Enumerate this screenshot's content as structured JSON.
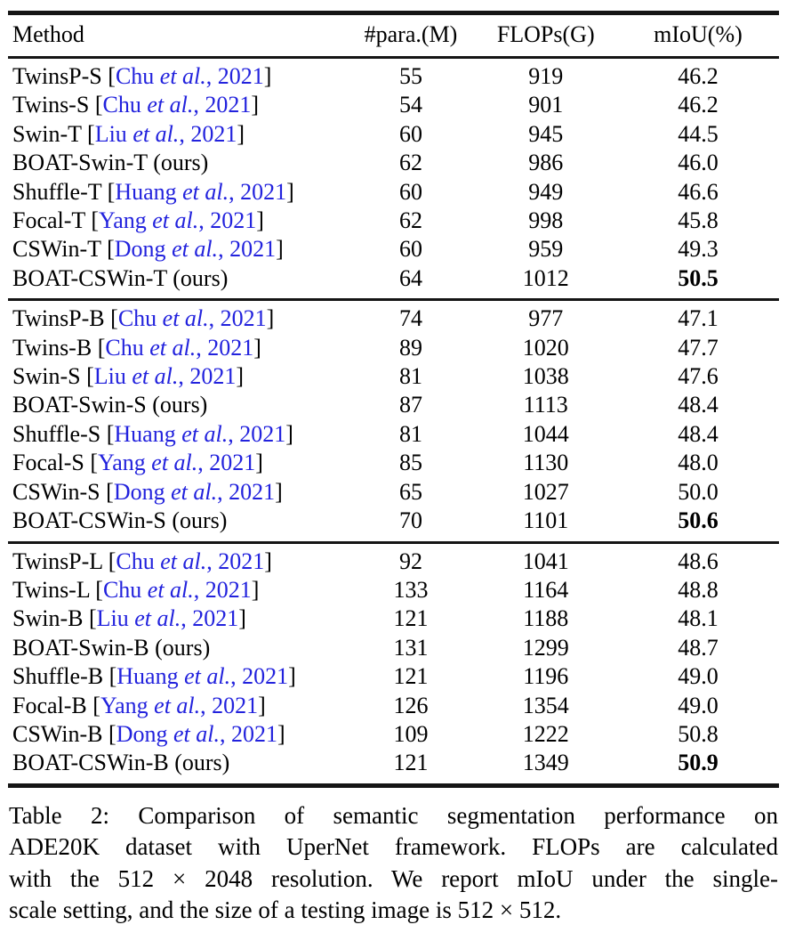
{
  "colors": {
    "citation": "#2222dd",
    "text": "#000000",
    "rule": "#151515",
    "background": "#ffffff"
  },
  "table": {
    "headers": [
      "Method",
      "#para.(M)",
      "FLOPs(G)",
      "mIoU(%)"
    ],
    "cite_bracket_open": "[",
    "cite_bracket_close": "]",
    "groups": [
      {
        "rows": [
          {
            "name": "TwinsP-S",
            "cite_author": "Chu",
            "cite_etal": "et al.",
            "cite_year": "2021",
            "para": "55",
            "flops": "919",
            "miou": "46.2",
            "bold": false
          },
          {
            "name": "Twins-S",
            "cite_author": "Chu",
            "cite_etal": "et al.",
            "cite_year": "2021",
            "para": "54",
            "flops": "901",
            "miou": "46.2",
            "bold": false
          },
          {
            "name": "Swin-T",
            "cite_author": "Liu",
            "cite_etal": "et al.",
            "cite_year": "2021",
            "para": "60",
            "flops": "945",
            "miou": "44.5",
            "bold": false
          },
          {
            "name": "BOAT-Swin-T",
            "suffix": "(ours)",
            "para": "62",
            "flops": "986",
            "miou": "46.0",
            "bold": false
          },
          {
            "name": "Shuffle-T",
            "cite_author": "Huang",
            "cite_etal": "et al.",
            "cite_year": "2021",
            "para": "60",
            "flops": "949",
            "miou": "46.6",
            "bold": false
          },
          {
            "name": "Focal-T",
            "cite_author": "Yang",
            "cite_etal": "et al.",
            "cite_year": "2021",
            "para": "62",
            "flops": "998",
            "miou": "45.8",
            "bold": false
          },
          {
            "name": "CSWin-T",
            "cite_author": "Dong",
            "cite_etal": "et al.",
            "cite_year": "2021",
            "para": "60",
            "flops": "959",
            "miou": "49.3",
            "bold": false
          },
          {
            "name": "BOAT-CSWin-T",
            "suffix": "(ours)",
            "para": "64",
            "flops": "1012",
            "miou": "50.5",
            "bold": true
          }
        ]
      },
      {
        "rows": [
          {
            "name": "TwinsP-B",
            "cite_author": "Chu",
            "cite_etal": "et al.",
            "cite_year": "2021",
            "para": "74",
            "flops": "977",
            "miou": "47.1",
            "bold": false
          },
          {
            "name": "Twins-B",
            "cite_author": "Chu",
            "cite_etal": "et al.",
            "cite_year": "2021",
            "para": "89",
            "flops": "1020",
            "miou": "47.7",
            "bold": false
          },
          {
            "name": "Swin-S",
            "cite_author": "Liu",
            "cite_etal": "et al.",
            "cite_year": "2021",
            "para": "81",
            "flops": "1038",
            "miou": "47.6",
            "bold": false
          },
          {
            "name": "BOAT-Swin-S",
            "suffix": "(ours)",
            "para": "87",
            "flops": "1113",
            "miou": "48.4",
            "bold": false
          },
          {
            "name": "Shuffle-S",
            "cite_author": "Huang",
            "cite_etal": "et al.",
            "cite_year": "2021",
            "para": "81",
            "flops": "1044",
            "miou": "48.4",
            "bold": false
          },
          {
            "name": "Focal-S",
            "cite_author": "Yang",
            "cite_etal": "et al.",
            "cite_year": "2021",
            "para": "85",
            "flops": "1130",
            "miou": "48.0",
            "bold": false
          },
          {
            "name": "CSWin-S",
            "cite_author": "Dong",
            "cite_etal": "et al.",
            "cite_year": "2021",
            "para": "65",
            "flops": "1027",
            "miou": "50.0",
            "bold": false
          },
          {
            "name": "BOAT-CSWin-S",
            "suffix": "(ours)",
            "para": "70",
            "flops": "1101",
            "miou": "50.6",
            "bold": true
          }
        ]
      },
      {
        "rows": [
          {
            "name": "TwinsP-L",
            "cite_author": "Chu",
            "cite_etal": "et al.",
            "cite_year": "2021",
            "para": "92",
            "flops": "1041",
            "miou": "48.6",
            "bold": false
          },
          {
            "name": "Twins-L",
            "cite_author": "Chu",
            "cite_etal": "et al.",
            "cite_year": "2021",
            "para": "133",
            "flops": "1164",
            "miou": "48.8",
            "bold": false
          },
          {
            "name": "Swin-B",
            "cite_author": "Liu",
            "cite_etal": "et al.",
            "cite_year": "2021",
            "para": "121",
            "flops": "1188",
            "miou": "48.1",
            "bold": false
          },
          {
            "name": "BOAT-Swin-B",
            "suffix": "(ours)",
            "para": "131",
            "flops": "1299",
            "miou": "48.7",
            "bold": false
          },
          {
            "name": "Shuffle-B",
            "cite_author": "Huang",
            "cite_etal": "et al.",
            "cite_year": "2021",
            "para": "121",
            "flops": "1196",
            "miou": "49.0",
            "bold": false
          },
          {
            "name": "Focal-B",
            "cite_author": "Yang",
            "cite_etal": "et al.",
            "cite_year": "2021",
            "para": "126",
            "flops": "1354",
            "miou": "49.0",
            "bold": false
          },
          {
            "name": "CSWin-B",
            "cite_author": "Dong",
            "cite_etal": "et al.",
            "cite_year": "2021",
            "para": "109",
            "flops": "1222",
            "miou": "50.8",
            "bold": false
          },
          {
            "name": "BOAT-CSWin-B",
            "suffix": "(ours)",
            "para": "121",
            "flops": "1349",
            "miou": "50.9",
            "bold": true
          }
        ]
      }
    ]
  },
  "caption": {
    "lines": [
      "Table 2:  Comparison of semantic segmentation performance on",
      "ADE20K dataset with UperNet framework.  FLOPs are calculated",
      "with the 512 × 2048 resolution. We report mIoU under the single-",
      "scale setting, and the size of a testing image is 512 × 512."
    ]
  }
}
